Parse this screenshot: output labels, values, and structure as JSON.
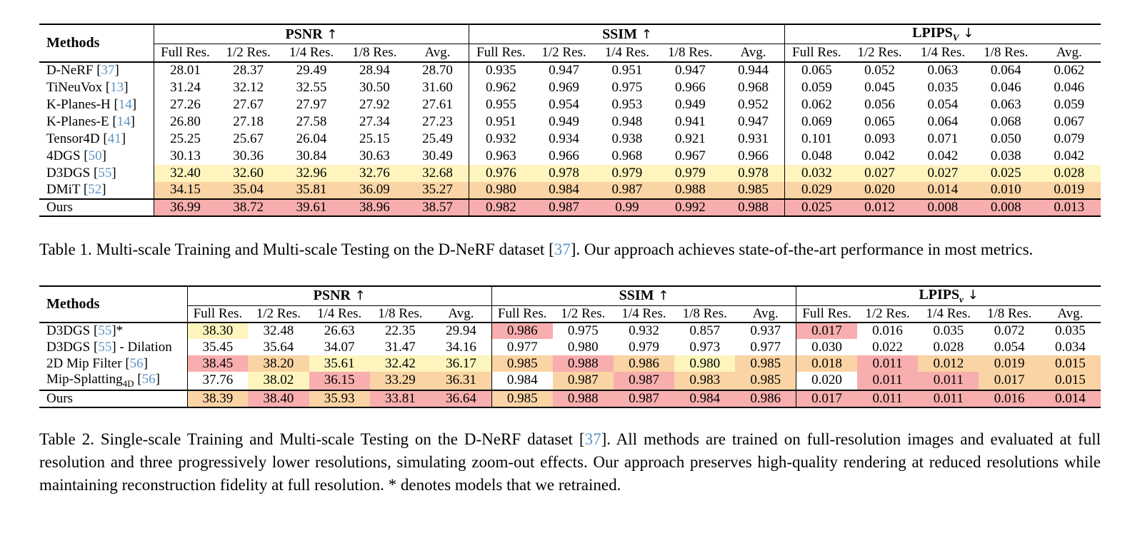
{
  "colors": {
    "best": "#F8AEAE",
    "second": "#FAD4A4",
    "third": "#FDF5BD",
    "citation": "#5F94C6",
    "rule": "#000000",
    "background": "#FFFFFF"
  },
  "subcolumns": [
    "Full Res.",
    "1/2 Res.",
    "1/4 Res.",
    "1/8 Res.",
    "Avg."
  ],
  "tables": [
    {
      "methods_label": "Methods",
      "methods_col_width": 160,
      "groups": [
        {
          "label": "PSNR",
          "sub": "",
          "arrow": "↑"
        },
        {
          "label": "SSIM",
          "sub": "",
          "arrow": "↑"
        },
        {
          "label": "LPIPS",
          "sub": "V",
          "arrow": "↓"
        }
      ],
      "rows": [
        {
          "method": [
            {
              "t": "x",
              "v": "D-NeRF "
            },
            {
              "t": "cite",
              "v": "37"
            }
          ],
          "values": [
            "28.01",
            "28.37",
            "29.49",
            "28.94",
            "28.70",
            "0.935",
            "0.947",
            "0.951",
            "0.947",
            "0.944",
            "0.065",
            "0.052",
            "0.063",
            "0.064",
            "0.062"
          ],
          "highlights": [
            "",
            "",
            "",
            "",
            "",
            "",
            "",
            "",
            "",
            "",
            "",
            "",
            "",
            "",
            ""
          ]
        },
        {
          "method": [
            {
              "t": "x",
              "v": "TiNeuVox "
            },
            {
              "t": "cite",
              "v": "13"
            }
          ],
          "values": [
            "31.24",
            "32.12",
            "32.55",
            "30.50",
            "31.60",
            "0.962",
            "0.969",
            "0.975",
            "0.966",
            "0.968",
            "0.059",
            "0.045",
            "0.035",
            "0.046",
            "0.046"
          ],
          "highlights": [
            "",
            "",
            "",
            "",
            "",
            "",
            "",
            "",
            "",
            "",
            "",
            "",
            "",
            "",
            ""
          ]
        },
        {
          "method": [
            {
              "t": "x",
              "v": "K-Planes-H "
            },
            {
              "t": "cite",
              "v": "14"
            }
          ],
          "values": [
            "27.26",
            "27.67",
            "27.97",
            "27.92",
            "27.61",
            "0.955",
            "0.954",
            "0.953",
            "0.949",
            "0.952",
            "0.062",
            "0.056",
            "0.054",
            "0.063",
            "0.059"
          ],
          "highlights": [
            "",
            "",
            "",
            "",
            "",
            "",
            "",
            "",
            "",
            "",
            "",
            "",
            "",
            "",
            ""
          ]
        },
        {
          "method": [
            {
              "t": "x",
              "v": "K-Planes-E "
            },
            {
              "t": "cite",
              "v": "14"
            }
          ],
          "values": [
            "26.80",
            "27.18",
            "27.58",
            "27.34",
            "27.23",
            "0.951",
            "0.949",
            "0.948",
            "0.941",
            "0.947",
            "0.069",
            "0.065",
            "0.064",
            "0.068",
            "0.067"
          ],
          "highlights": [
            "",
            "",
            "",
            "",
            "",
            "",
            "",
            "",
            "",
            "",
            "",
            "",
            "",
            "",
            ""
          ]
        },
        {
          "method": [
            {
              "t": "x",
              "v": "Tensor4D "
            },
            {
              "t": "cite",
              "v": "41"
            }
          ],
          "values": [
            "25.25",
            "25.67",
            "26.04",
            "25.15",
            "25.49",
            "0.932",
            "0.934",
            "0.938",
            "0.921",
            "0.931",
            "0.101",
            "0.093",
            "0.071",
            "0.050",
            "0.079"
          ],
          "highlights": [
            "",
            "",
            "",
            "",
            "",
            "",
            "",
            "",
            "",
            "",
            "",
            "",
            "",
            "",
            ""
          ]
        },
        {
          "method": [
            {
              "t": "x",
              "v": "4DGS "
            },
            {
              "t": "cite",
              "v": "50"
            }
          ],
          "values": [
            "30.13",
            "30.36",
            "30.84",
            "30.63",
            "30.49",
            "0.963",
            "0.966",
            "0.968",
            "0.967",
            "0.966",
            "0.048",
            "0.042",
            "0.042",
            "0.038",
            "0.042"
          ],
          "highlights": [
            "",
            "",
            "",
            "",
            "",
            "",
            "",
            "",
            "",
            "",
            "",
            "",
            "",
            "",
            ""
          ]
        },
        {
          "method": [
            {
              "t": "x",
              "v": "D3DGS "
            },
            {
              "t": "cite",
              "v": "55"
            }
          ],
          "values": [
            "32.40",
            "32.60",
            "32.96",
            "32.76",
            "32.68",
            "0.976",
            "0.978",
            "0.979",
            "0.979",
            "0.978",
            "0.032",
            "0.027",
            "0.027",
            "0.025",
            "0.028"
          ],
          "highlights": [
            "y",
            "y",
            "y",
            "y",
            "y",
            "y",
            "y",
            "y",
            "y",
            "y",
            "y",
            "y",
            "y",
            "y",
            "y"
          ]
        },
        {
          "method": [
            {
              "t": "x",
              "v": "DMiT "
            },
            {
              "t": "cite",
              "v": "52"
            }
          ],
          "values": [
            "34.15",
            "35.04",
            "35.81",
            "36.09",
            "35.27",
            "0.980",
            "0.984",
            "0.987",
            "0.988",
            "0.985",
            "0.029",
            "0.020",
            "0.014",
            "0.010",
            "0.019"
          ],
          "highlights": [
            "o",
            "o",
            "o",
            "o",
            "o",
            "o",
            "o",
            "o",
            "o",
            "o",
            "o",
            "o",
            "o",
            "o",
            "o"
          ]
        },
        {
          "method": [
            {
              "t": "x",
              "v": "Ours"
            }
          ],
          "rule_above": true,
          "values": [
            "36.99",
            "38.72",
            "39.61",
            "38.96",
            "38.57",
            "0.982",
            "0.987",
            "0.99",
            "0.992",
            "0.988",
            "0.025",
            "0.012",
            "0.008",
            "0.008",
            "0.013"
          ],
          "highlights": [
            "p",
            "p",
            "p",
            "p",
            "p",
            "p",
            "p",
            "p",
            "p",
            "p",
            "p",
            "p",
            "p",
            "p",
            "p"
          ]
        }
      ]
    },
    {
      "methods_label": "Methods",
      "methods_col_width": 207,
      "groups": [
        {
          "label": "PSNR",
          "sub": "",
          "arrow": "↑"
        },
        {
          "label": "SSIM",
          "sub": "",
          "arrow": "↑"
        },
        {
          "label": "LPIPS",
          "sub": "v",
          "arrow": "↓"
        }
      ],
      "rows": [
        {
          "method": [
            {
              "t": "x",
              "v": "D3DGS "
            },
            {
              "t": "cite",
              "v": "55"
            },
            {
              "t": "x",
              "v": "*"
            }
          ],
          "values": [
            "38.30",
            "32.48",
            "26.63",
            "22.35",
            "29.94",
            "0.986",
            "0.975",
            "0.932",
            "0.857",
            "0.937",
            "0.017",
            "0.016",
            "0.035",
            "0.072",
            "0.035"
          ],
          "highlights": [
            "y",
            "",
            "",
            "",
            "",
            "p",
            "",
            "",
            "",
            "",
            "p",
            "",
            "",
            "",
            ""
          ]
        },
        {
          "method": [
            {
              "t": "x",
              "v": "D3DGS "
            },
            {
              "t": "cite",
              "v": "55"
            },
            {
              "t": "x",
              "v": " - Dilation"
            }
          ],
          "values": [
            "35.45",
            "35.64",
            "34.07",
            "31.47",
            "34.16",
            "0.977",
            "0.980",
            "0.979",
            "0.973",
            "0.977",
            "0.030",
            "0.022",
            "0.028",
            "0.054",
            "0.034"
          ],
          "highlights": [
            "",
            "",
            "",
            "",
            "",
            "",
            "",
            "",
            "",
            "",
            "",
            "",
            "",
            "",
            ""
          ]
        },
        {
          "method": [
            {
              "t": "x",
              "v": "2D Mip Filter "
            },
            {
              "t": "cite",
              "v": "56"
            }
          ],
          "values": [
            "38.45",
            "38.20",
            "35.61",
            "32.42",
            "36.17",
            "0.985",
            "0.988",
            "0.986",
            "0.980",
            "0.985",
            "0.018",
            "0.011",
            "0.012",
            "0.019",
            "0.015"
          ],
          "highlights": [
            "p",
            "o",
            "y",
            "y",
            "y",
            "o",
            "p",
            "o",
            "y",
            "o",
            "o",
            "p",
            "o",
            "o",
            "o"
          ]
        },
        {
          "method": [
            {
              "t": "x",
              "v": "Mip-Splatting"
            },
            {
              "t": "sub",
              "v": "4D"
            },
            {
              "t": "x",
              "v": " "
            },
            {
              "t": "cite",
              "v": "56"
            }
          ],
          "values": [
            "37.76",
            "38.02",
            "36.15",
            "33.29",
            "36.31",
            "0.984",
            "0.987",
            "0.987",
            "0.983",
            "0.985",
            "0.020",
            "0.011",
            "0.011",
            "0.017",
            "0.015"
          ],
          "highlights": [
            "",
            "y",
            "p",
            "o",
            "o",
            "",
            "o",
            "p",
            "o",
            "o",
            "",
            "p",
            "p",
            "o",
            "o"
          ]
        },
        {
          "method": [
            {
              "t": "x",
              "v": "Ours"
            }
          ],
          "rule_above": true,
          "values": [
            "38.39",
            "38.40",
            "35.93",
            "33.81",
            "36.64",
            "0.985",
            "0.988",
            "0.987",
            "0.984",
            "0.986",
            "0.017",
            "0.011",
            "0.011",
            "0.016",
            "0.014"
          ],
          "highlights": [
            "o",
            "p",
            "o",
            "p",
            "p",
            "o",
            "p",
            "p",
            "p",
            "p",
            "p",
            "p",
            "p",
            "p",
            "p"
          ]
        }
      ]
    }
  ],
  "captions": [
    {
      "segments": [
        {
          "t": "x",
          "v": "Table 1. Multi-scale Training and Multi-scale Testing on the D-NeRF dataset "
        },
        {
          "t": "cite",
          "v": "37"
        },
        {
          "t": "x",
          "v": ". Our approach achieves state-of-the-art performance in most metrics."
        }
      ]
    },
    {
      "segments": [
        {
          "t": "x",
          "v": "Table 2. Single-scale Training and Multi-scale Testing on the D-NeRF dataset "
        },
        {
          "t": "cite",
          "v": "37"
        },
        {
          "t": "x",
          "v": ". All methods are trained on full-resolution images and evaluated at full resolution and three progressively lower resolutions, simulating zoom-out effects. Our approach preserves high-quality rendering at reduced resolutions while maintaining reconstruction fidelity at full resolution. * denotes models that we retrained."
        }
      ]
    }
  ]
}
